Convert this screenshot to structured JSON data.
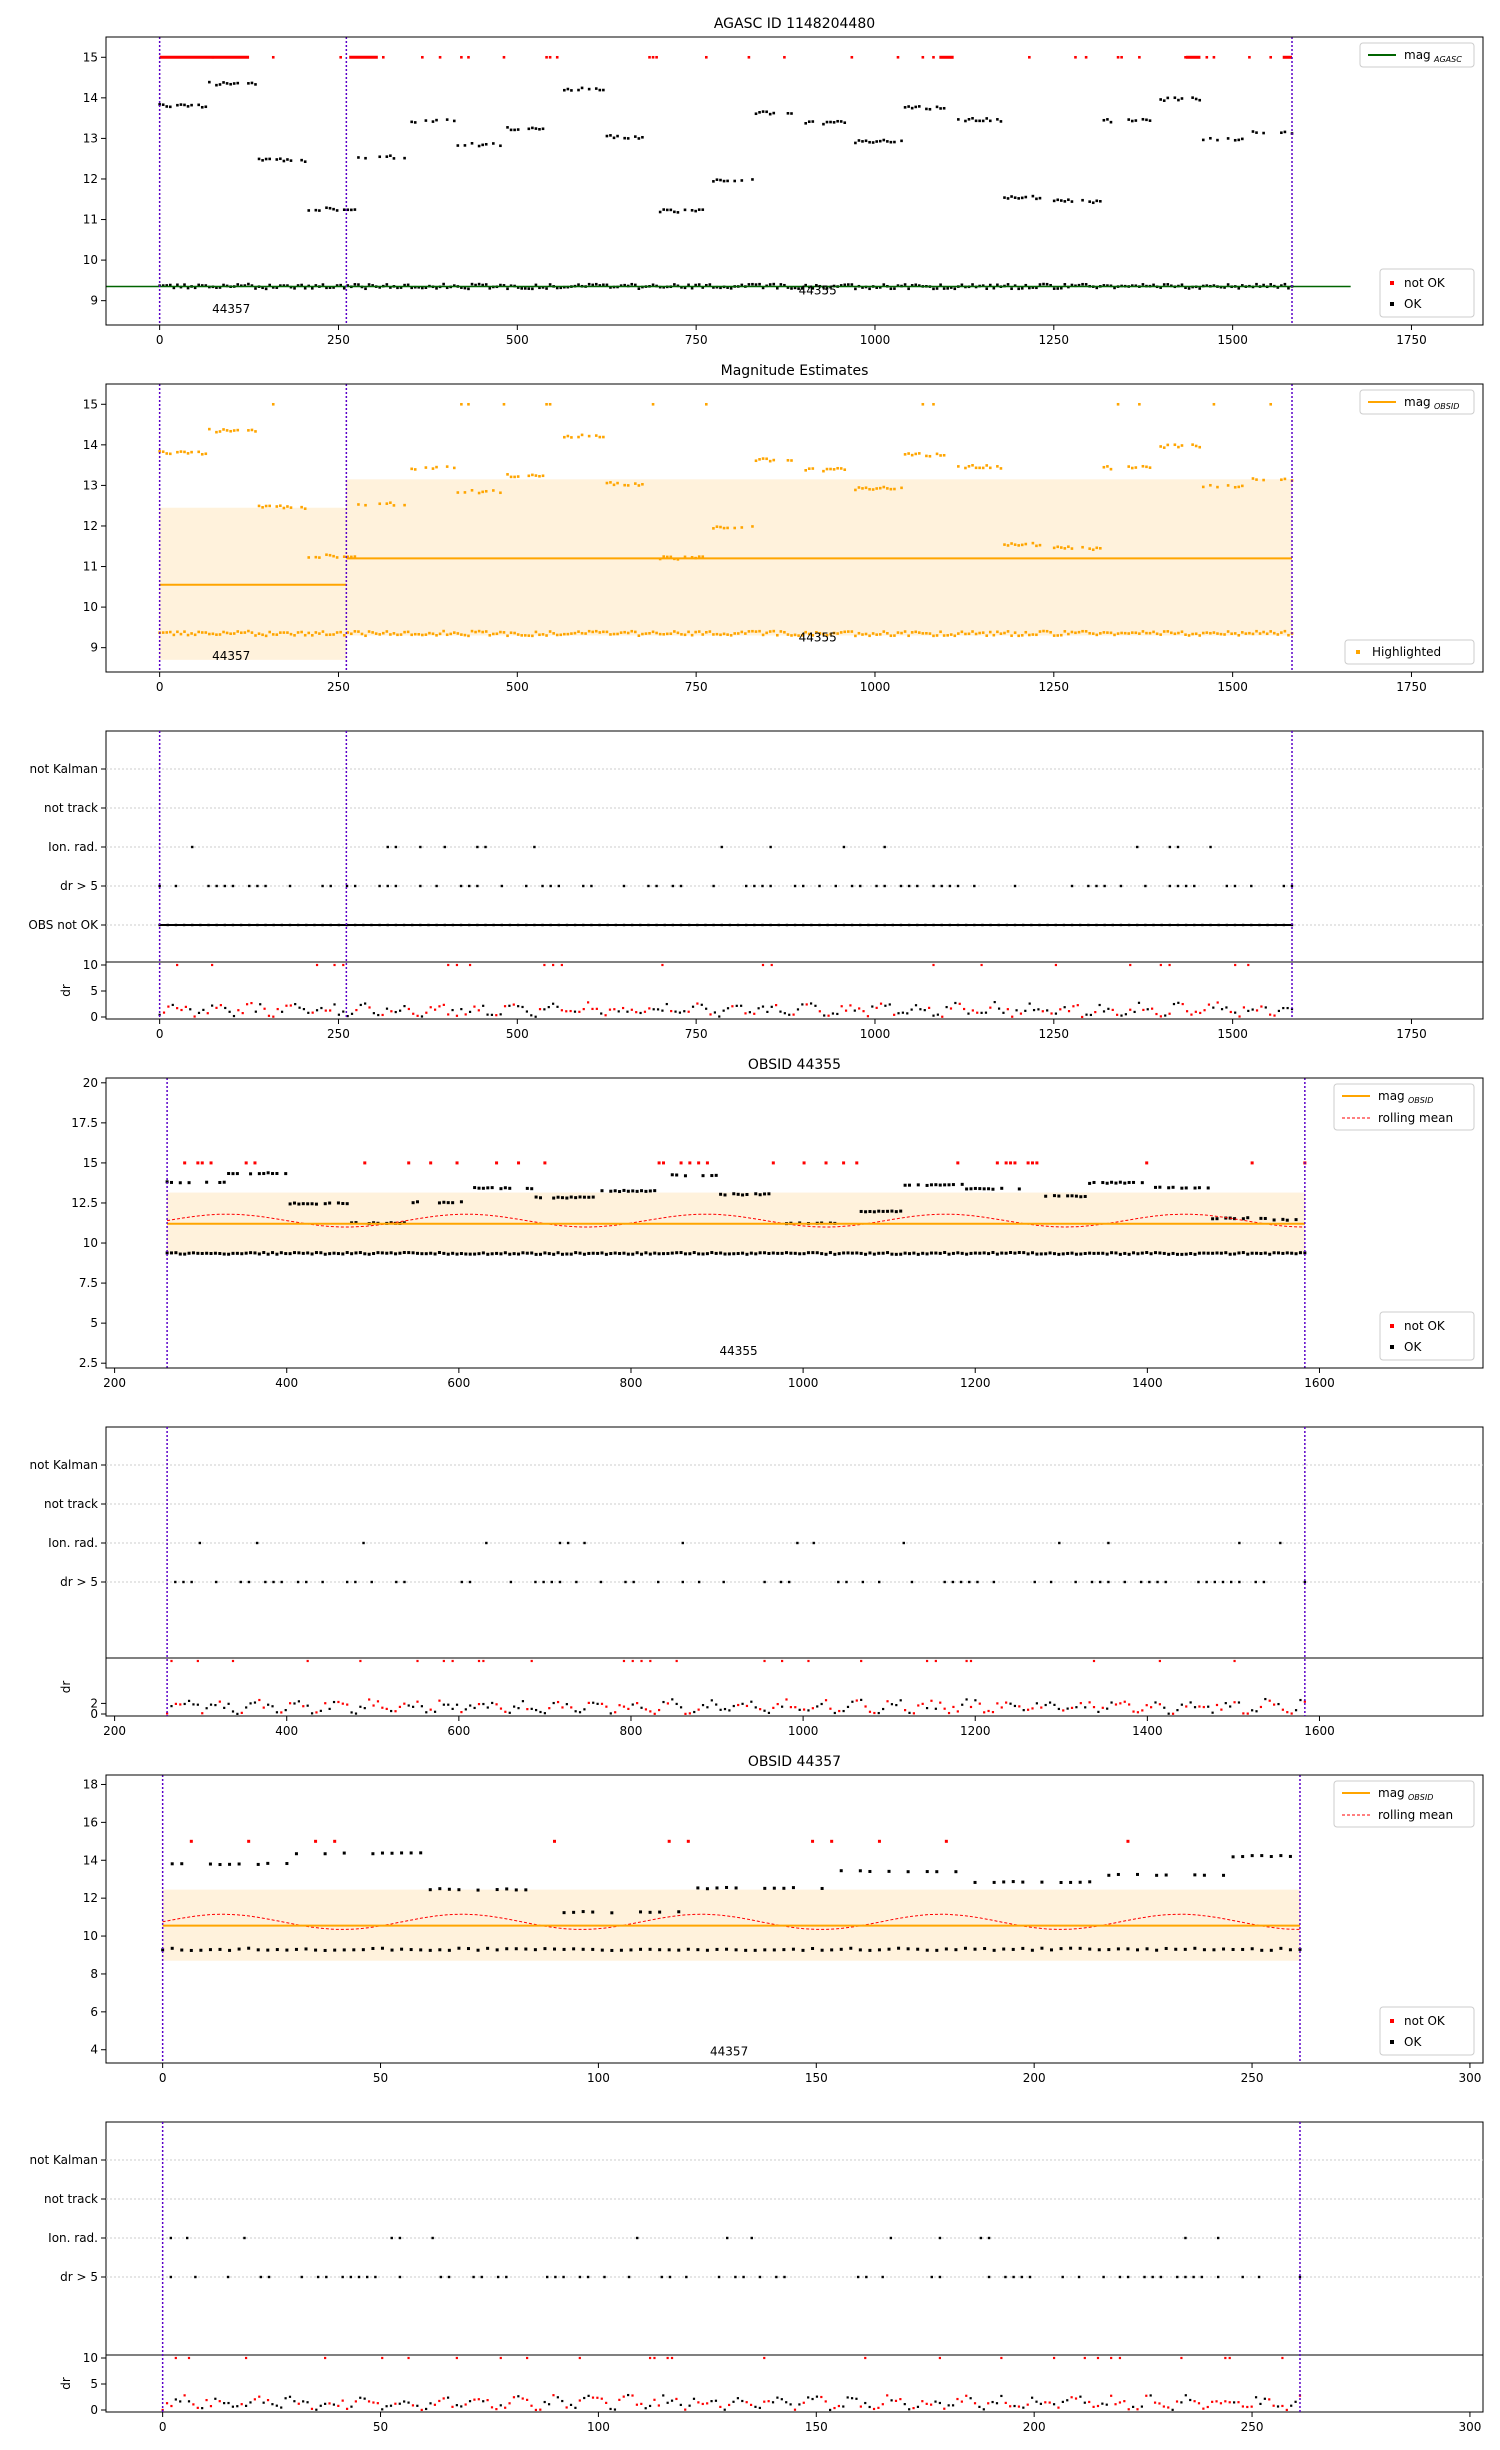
{
  "chart_data": [
    {
      "id": "agasc",
      "type": "scatter",
      "title": "AGASC ID 1148204480",
      "xlim": [
        -75,
        1850
      ],
      "ylim": [
        8.4,
        15.5
      ],
      "xticks": [
        0,
        250,
        500,
        750,
        1000,
        1250,
        1500,
        1750
      ],
      "yticks": [
        9,
        10,
        11,
        12,
        13,
        14,
        15
      ],
      "mag_line": {
        "label": "mag_AGASC",
        "value": 9.35,
        "x": [
          -75,
          1665
        ],
        "color": "#006400"
      },
      "legend_top": "mag",
      "legend_top_sub": "AGASC",
      "legend_bottom": [
        "not OK",
        "OK"
      ],
      "vlines": [
        0,
        261,
        1583
      ],
      "annotations": [
        {
          "text": "44357",
          "x": 100,
          "y": 8.7
        },
        {
          "text": "44355",
          "x": 920,
          "y": 9.15
        }
      ],
      "points_note": "per-interval magnitude estimates, red = not OK (saturated at 15), black = OK"
    },
    {
      "id": "estimates",
      "type": "scatter",
      "title": "Magnitude Estimates",
      "xlim": [
        -75,
        1850
      ],
      "ylim": [
        8.4,
        15.5
      ],
      "xticks": [
        0,
        250,
        500,
        750,
        1000,
        1250,
        1500,
        1750
      ],
      "yticks": [
        9,
        10,
        11,
        12,
        13,
        14,
        15
      ],
      "obsid_mags": [
        {
          "x": [
            0,
            261
          ],
          "mag": 10.55,
          "band": [
            8.7,
            12.45
          ]
        },
        {
          "x": [
            261,
            1583
          ],
          "mag": 11.2,
          "band": [
            9.3,
            13.15
          ]
        }
      ],
      "legend_top": "mag",
      "legend_top_sub": "OBSID",
      "legend_bottom": "Highlighted",
      "vlines": [
        0,
        261,
        1583
      ],
      "annotations": [
        {
          "text": "44357",
          "x": 100,
          "y": 8.7
        },
        {
          "text": "44355",
          "x": 920,
          "y": 9.15
        }
      ]
    },
    {
      "id": "flags-all",
      "type": "scatter",
      "categories": [
        "not Kalman",
        "not track",
        "Ion. rad.",
        "dr > 5",
        "OBS not OK"
      ],
      "xlim": [
        -75,
        1850
      ],
      "xticks": [
        0,
        250,
        500,
        750,
        1000,
        1250,
        1500,
        1750
      ],
      "dr_ylabel": "dr",
      "dr_yticks": [
        0,
        5,
        10
      ],
      "vlines": [
        0,
        261,
        1583
      ]
    },
    {
      "id": "obsid-44355",
      "type": "scatter",
      "title": "OBSID 44355",
      "xlim": [
        190,
        1790
      ],
      "ylim": [
        2.2,
        20.3
      ],
      "xticks": [
        200,
        400,
        600,
        800,
        1000,
        1200,
        1400,
        1600
      ],
      "yticks": [
        2.5,
        5.0,
        7.5,
        10.0,
        12.5,
        15.0,
        17.5,
        20.0
      ],
      "mag_obsid": 11.2,
      "band": [
        9.3,
        13.15
      ],
      "legend_top": [
        "mag",
        "rolling mean"
      ],
      "legend_top_sub": "OBSID",
      "legend_bottom": [
        "not OK",
        "OK"
      ],
      "vlines": [
        261,
        1583
      ],
      "annotations": [
        {
          "text": "44355",
          "x": 925,
          "y": 3.0
        }
      ]
    },
    {
      "id": "flags-44355",
      "type": "scatter",
      "categories": [
        "not Kalman",
        "not track",
        "Ion. rad.",
        "dr > 5"
      ],
      "xlim": [
        190,
        1790
      ],
      "xticks": [
        200,
        400,
        600,
        800,
        1000,
        1200,
        1400,
        1600
      ],
      "dr_ylabel": "dr",
      "dr_yticks": [
        0,
        2
      ],
      "vlines": [
        261,
        1583
      ]
    },
    {
      "id": "obsid-44357",
      "type": "scatter",
      "title": "OBSID 44357",
      "xlim": [
        -13,
        303
      ],
      "ylim": [
        3.3,
        18.5
      ],
      "xticks": [
        0,
        50,
        100,
        150,
        200,
        250,
        300
      ],
      "yticks": [
        4,
        6,
        8,
        10,
        12,
        14,
        16,
        18
      ],
      "mag_obsid": 10.55,
      "band": [
        8.7,
        12.45
      ],
      "legend_top": [
        "mag",
        "rolling mean"
      ],
      "legend_top_sub": "OBSID",
      "legend_bottom": [
        "not OK",
        "OK"
      ],
      "vlines": [
        0,
        261
      ],
      "annotations": [
        {
          "text": "44357",
          "x": 130,
          "y": 3.7
        }
      ]
    },
    {
      "id": "flags-44357",
      "type": "scatter",
      "categories": [
        "not Kalman",
        "not track",
        "Ion. rad.",
        "dr > 5"
      ],
      "xlim": [
        -13,
        303
      ],
      "xticks": [
        0,
        50,
        100,
        150,
        200,
        250,
        300
      ],
      "dr_ylabel": "dr",
      "dr_yticks": [
        0,
        5,
        10
      ],
      "vlines": [
        0,
        261
      ]
    }
  ],
  "colors": {
    "ok": "#000000",
    "not_ok": "#ff0000",
    "orange": "#ffa500",
    "band": "#fff2dc",
    "vline": "#5a00c8",
    "agasc": "#006400"
  }
}
